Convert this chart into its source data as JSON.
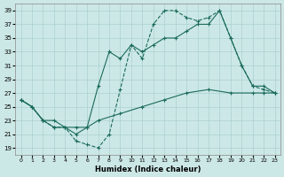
{
  "xlabel": "Humidex (Indice chaleur)",
  "bg_color": "#cce8e6",
  "grid_color": "#aad0ce",
  "line_color": "#1a6b5a",
  "xlim": [
    -0.5,
    23.5
  ],
  "ylim": [
    18,
    40
  ],
  "yticks": [
    19,
    21,
    23,
    25,
    27,
    29,
    31,
    33,
    35,
    37,
    39
  ],
  "xticks": [
    0,
    1,
    2,
    3,
    4,
    5,
    6,
    7,
    8,
    9,
    10,
    11,
    12,
    13,
    14,
    15,
    16,
    17,
    18,
    19,
    20,
    21,
    22,
    23
  ],
  "line1_x": [
    0,
    1,
    2,
    3,
    4,
    5,
    6,
    7,
    8,
    9,
    10,
    11,
    12,
    13,
    14,
    15,
    16,
    17,
    18,
    19,
    20,
    21,
    22,
    23
  ],
  "line1_y": [
    26,
    25,
    23,
    22,
    22,
    20,
    19.5,
    19,
    21,
    27.5,
    34,
    32,
    37,
    39,
    39,
    38,
    37.5,
    38,
    39,
    35,
    31,
    28,
    27.5,
    27
  ],
  "line2_x": [
    0,
    1,
    2,
    3,
    4,
    5,
    6,
    7,
    8,
    9,
    10,
    11,
    12,
    13,
    14,
    15,
    16,
    17,
    18,
    19,
    20,
    21,
    22,
    23
  ],
  "line2_y": [
    26,
    25,
    23,
    22,
    22,
    21,
    22,
    28,
    33,
    32,
    34,
    33,
    34,
    35,
    35,
    36,
    37,
    37,
    39,
    35,
    31,
    28,
    28,
    27
  ],
  "line3_x": [
    0,
    1,
    2,
    3,
    4,
    5,
    6,
    7,
    9,
    11,
    13,
    15,
    17,
    19,
    21,
    22,
    23
  ],
  "line3_y": [
    26,
    25,
    23,
    23,
    22,
    22,
    22,
    23,
    24,
    25,
    26,
    27,
    27.5,
    27,
    27,
    27,
    27
  ]
}
